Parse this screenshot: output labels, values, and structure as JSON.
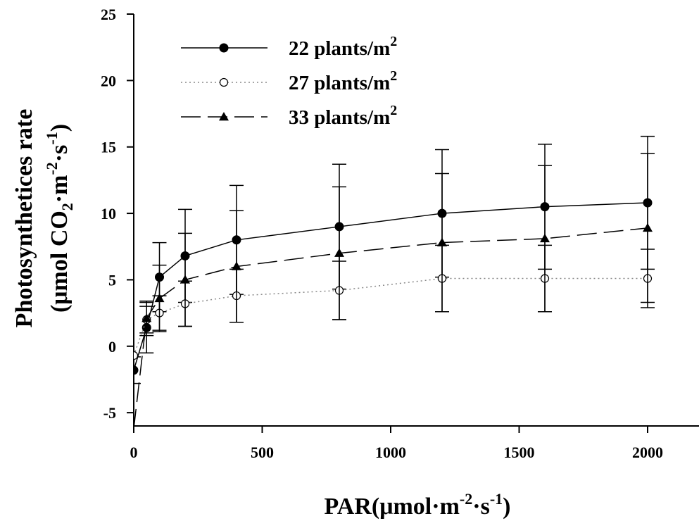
{
  "chart_data": {
    "type": "line",
    "xlabel": {
      "base": "PAR(μmol·m",
      "sup1": "-2",
      "mid": "·s",
      "sup2": "-1",
      "end": ")"
    },
    "ylabel": {
      "line1": "Photosynthetices rate",
      "line2": {
        "a": "(μmol CO",
        "sub": "2",
        "b": "·m",
        "sup1": "-2",
        "c": "·s",
        "sup2": "-1",
        "d": ")"
      }
    },
    "xlim": [
      0,
      2200
    ],
    "ylim": [
      -6,
      25
    ],
    "xticks": [
      0,
      500,
      1000,
      1500,
      2000
    ],
    "yticks": [
      -5,
      0,
      5,
      10,
      15,
      20,
      25
    ],
    "legend_position": "top-left",
    "grid": false,
    "x": [
      0,
      50,
      100,
      200,
      400,
      800,
      1200,
      1600,
      2000
    ],
    "series": [
      {
        "name": "22 plants/m",
        "name_sup": "2",
        "marker": "filled-circle",
        "line_style": "solid",
        "color": "#000000",
        "values": [
          -1.8,
          1.4,
          5.2,
          6.8,
          8.0,
          9.0,
          10.0,
          10.5,
          10.8
        ],
        "err": [
          1.0,
          1.9,
          2.6,
          3.5,
          4.1,
          4.7,
          4.8,
          4.7,
          5.0
        ]
      },
      {
        "name": "27 plants/m",
        "name_sup": "2",
        "marker": "open-circle",
        "line_style": "dotted",
        "color": "#888888",
        "values": [
          -0.7,
          2.0,
          2.5,
          3.2,
          3.8,
          4.2,
          5.1,
          5.1,
          5.1
        ],
        "err": [
          0.0,
          1.0,
          1.3,
          1.7,
          2.0,
          2.2,
          2.5,
          2.5,
          2.2
        ]
      },
      {
        "name": "33 plants/m",
        "name_sup": "2",
        "marker": "filled-triangle",
        "line_style": "dashed",
        "color": "#000000",
        "values": [
          -6.2,
          2.1,
          3.6,
          5.0,
          6.0,
          7.0,
          7.8,
          8.1,
          8.9
        ],
        "err": [
          0.0,
          1.3,
          2.5,
          3.5,
          4.2,
          5.0,
          5.2,
          5.5,
          5.6
        ]
      }
    ]
  }
}
